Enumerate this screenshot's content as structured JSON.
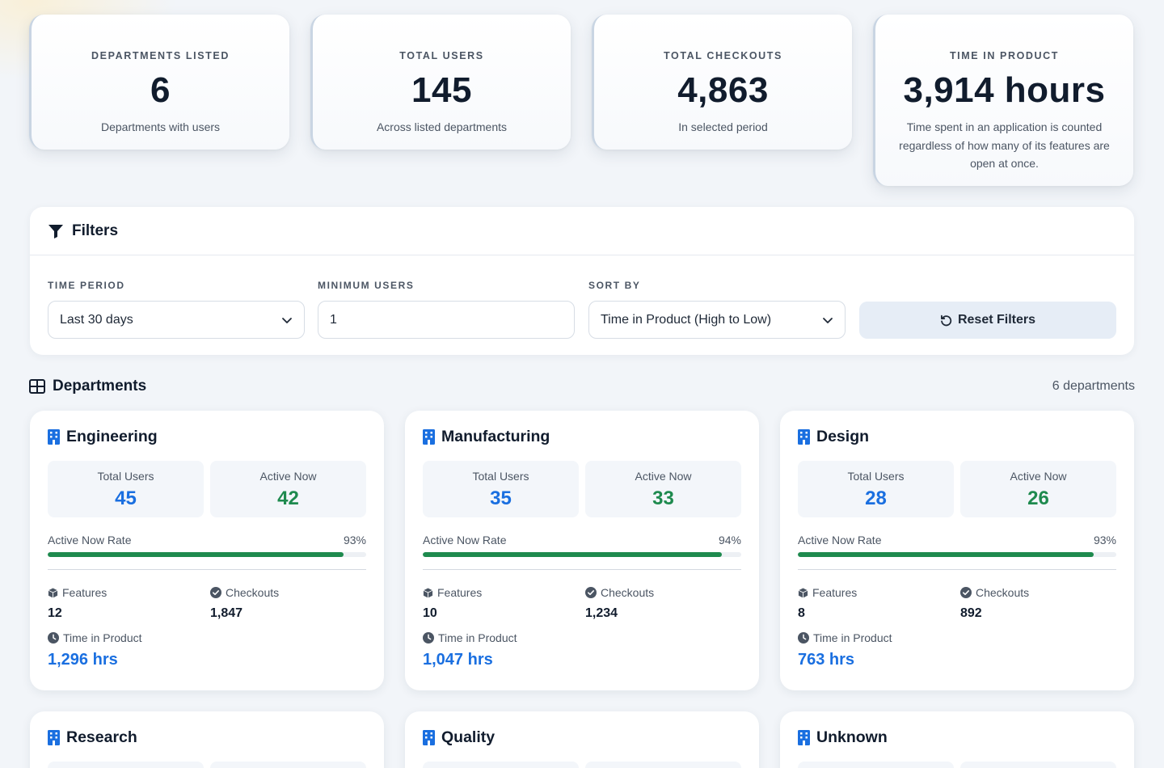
{
  "stats": [
    {
      "label": "DEPARTMENTS LISTED",
      "value": "6",
      "sub": "Departments with users"
    },
    {
      "label": "TOTAL USERS",
      "value": "145",
      "sub": "Across listed departments"
    },
    {
      "label": "TOTAL CHECKOUTS",
      "value": "4,863",
      "sub": "In selected period"
    },
    {
      "label": "TIME IN PRODUCT",
      "value": "3,914 hours",
      "sub": "Time spent in an application is counted regardless of how many of its features are open at once."
    }
  ],
  "filters": {
    "title": "Filters",
    "time_period": {
      "label": "TIME PERIOD",
      "value": "Last 30 days"
    },
    "min_users": {
      "label": "MINIMUM USERS",
      "value": "1"
    },
    "sort_by": {
      "label": "SORT BY",
      "value": "Time in Product (High to Low)"
    },
    "reset_label": "Reset Filters"
  },
  "departments_header": {
    "title": "Departments",
    "count": "6 departments"
  },
  "cards": [
    {
      "name": "Engineering",
      "total_users_label": "Total Users",
      "total_users": "45",
      "active_label": "Active Now",
      "active": "42",
      "rate_label": "Active Now Rate",
      "rate": "93%",
      "rate_value": 0.93,
      "features_label": "Features",
      "features": "12",
      "checkouts_label": "Checkouts",
      "checkouts": "1,847",
      "tip_label": "Time in Product",
      "tip": "1,296 hrs"
    },
    {
      "name": "Manufacturing",
      "total_users_label": "Total Users",
      "total_users": "35",
      "active_label": "Active Now",
      "active": "33",
      "rate_label": "Active Now Rate",
      "rate": "94%",
      "rate_value": 0.94,
      "features_label": "Features",
      "features": "10",
      "checkouts_label": "Checkouts",
      "checkouts": "1,234",
      "tip_label": "Time in Product",
      "tip": "1,047 hrs"
    },
    {
      "name": "Design",
      "total_users_label": "Total Users",
      "total_users": "28",
      "active_label": "Active Now",
      "active": "26",
      "rate_label": "Active Now Rate",
      "rate": "93%",
      "rate_value": 0.93,
      "features_label": "Features",
      "features": "8",
      "checkouts_label": "Checkouts",
      "checkouts": "892",
      "tip_label": "Time in Product",
      "tip": "763 hrs"
    },
    {
      "name": "Research"
    },
    {
      "name": "Quality"
    },
    {
      "name": "Unknown"
    }
  ],
  "colors": {
    "accent_blue": "#1a6fe0",
    "success_green": "#1e8a4e",
    "heading": "#111c2d"
  }
}
